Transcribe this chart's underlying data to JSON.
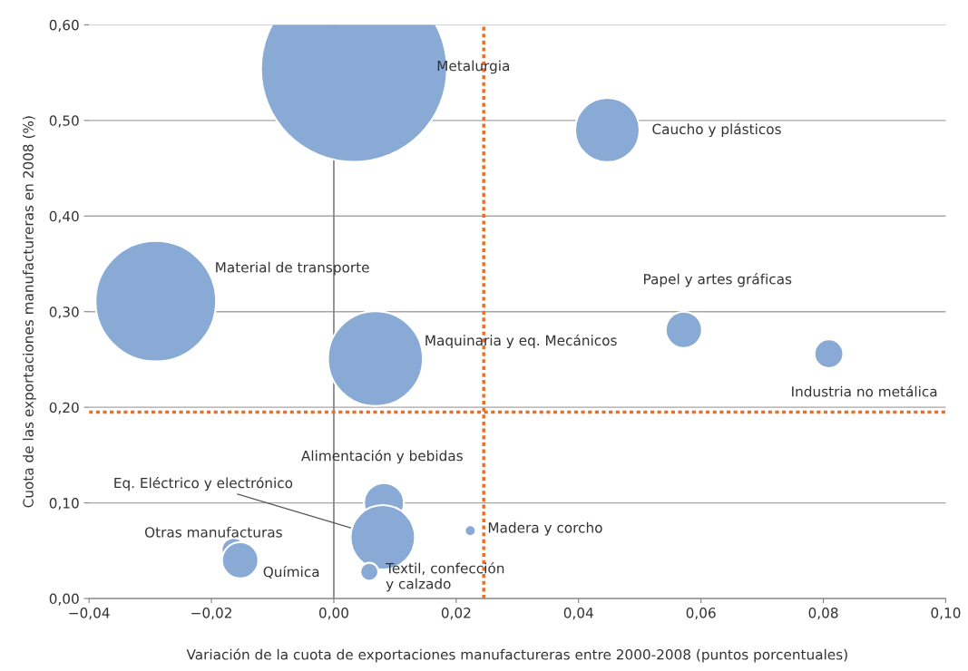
{
  "chart_data": {
    "type": "bubble",
    "xlabel": "Variación de la cuota de exportaciones manufactureras entre 2000-2008 (puntos porcentuales)",
    "ylabel": "Cuota de las exportaciones manufactureras en 2008 (%)",
    "xlim": [
      -0.04,
      0.1
    ],
    "xticks": [
      {
        "value": -0.04,
        "label": "−0,04"
      },
      {
        "value": -0.02,
        "label": "−0,02"
      },
      {
        "value": 0.0,
        "label": "0,00"
      },
      {
        "value": 0.02,
        "label": "0,02"
      },
      {
        "value": 0.04,
        "label": "0,04"
      },
      {
        "value": 0.06,
        "label": "0,06"
      },
      {
        "value": 0.08,
        "label": "0,08"
      },
      {
        "value": 0.1,
        "label": "0,10"
      }
    ],
    "ylim": [
      0.0,
      0.6
    ],
    "yticks": [
      {
        "value": 0.0,
        "label": "0,00"
      },
      {
        "value": 0.1,
        "label": "0,10"
      },
      {
        "value": 0.2,
        "label": "0,20"
      },
      {
        "value": 0.3,
        "label": "0,30"
      },
      {
        "value": 0.4,
        "label": "0,40"
      },
      {
        "value": 0.5,
        "label": "0,50"
      },
      {
        "value": 0.6,
        "label": "0,60"
      }
    ],
    "grid": "y",
    "legend": false,
    "ref_lines": [
      {
        "axis": "x",
        "value": 0.0,
        "color": "#808080",
        "line_style": "solid"
      },
      {
        "axis": "x",
        "value": 0.0245,
        "color": "#e8702a",
        "line_style": "dotted"
      },
      {
        "axis": "y",
        "value": 0.195,
        "color": "#e8702a",
        "line_style": "dotted"
      }
    ],
    "series": [
      {
        "name": "Metalurgia",
        "color": "#88aad5",
        "x": [
          0.0033
        ],
        "values": [
          0.554
        ],
        "sizes": [
          1
        ]
      },
      {
        "name": "Caucho y plásticos",
        "color": "#88aad5",
        "x": [
          0.0447
        ],
        "values": [
          0.49
        ],
        "sizes": [
          0.12
        ]
      },
      {
        "name": "Material de transporte",
        "color": "#88aad5",
        "x": [
          -0.0291
        ],
        "values": [
          0.311
        ],
        "sizes": [
          0.42
        ]
      },
      {
        "name": "Maquinaria y eq. Mecánicos",
        "color": "#88aad5",
        "x": [
          0.0068
        ],
        "values": [
          0.251
        ],
        "sizes": [
          0.26
        ]
      },
      {
        "name": "Papel y artes gráficas",
        "color": "#88aad5",
        "x": [
          0.0572
        ],
        "values": [
          0.281
        ],
        "sizes": [
          0.038
        ]
      },
      {
        "name": "Industria no metálica",
        "color": "#88aad5",
        "x": [
          0.0809
        ],
        "values": [
          0.256
        ],
        "sizes": [
          0.024
        ]
      },
      {
        "name": "Alimentación y bebidas",
        "color": "#88aad5",
        "x": [
          0.0082
        ],
        "values": [
          0.1
        ],
        "sizes": [
          0.046
        ]
      },
      {
        "name": "Eq. Eléctrico y electrónico",
        "color": "#88aad5",
        "x": [
          0.008
        ],
        "values": [
          0.064
        ],
        "sizes": [
          0.12
        ]
      },
      {
        "name": "Madera y corcho",
        "color": "#88aad5",
        "x": [
          0.0223
        ],
        "values": [
          0.071
        ],
        "sizes": [
          0.0034
        ]
      },
      {
        "name": "Textil, confección\ny calzado",
        "color": "#88aad5",
        "x": [
          0.0058
        ],
        "values": [
          0.028
        ],
        "sizes": [
          0.0094
        ]
      },
      {
        "name": "Otras manufacturas",
        "color": "#88aad5",
        "x": [
          -0.0164
        ],
        "values": [
          0.051
        ],
        "sizes": [
          0.016
        ]
      },
      {
        "name": "Química",
        "color": "#88aad5",
        "x": [
          -0.0153
        ],
        "values": [
          0.04
        ],
        "sizes": [
          0.038
        ]
      }
    ]
  }
}
